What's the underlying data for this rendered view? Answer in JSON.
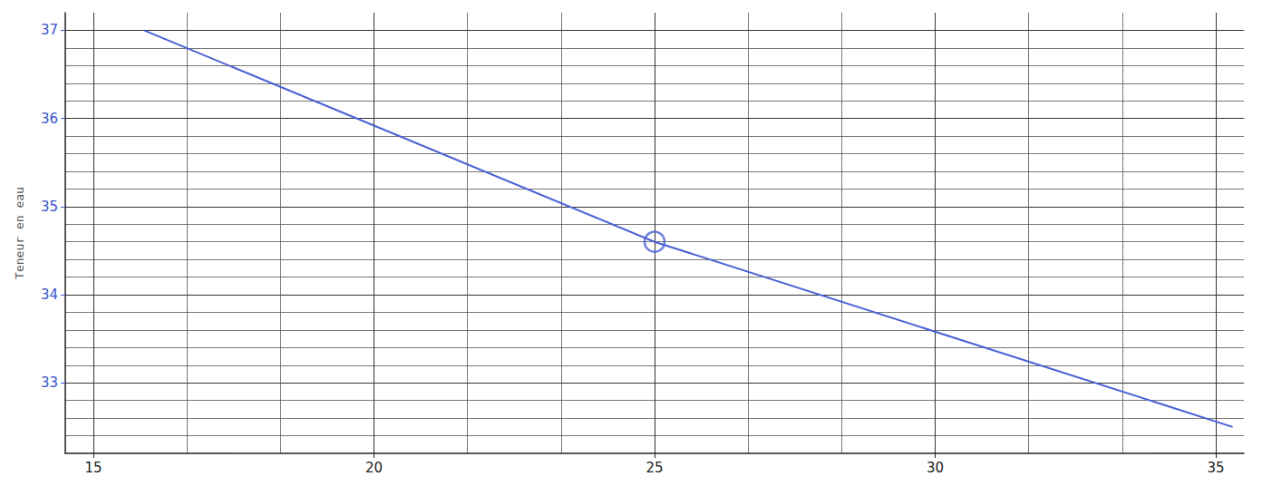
{
  "chart_data": {
    "type": "line",
    "y_label": "Teneur en eau",
    "xlim": [
      14.5,
      35.5
    ],
    "xticks": [
      15,
      20,
      25,
      30,
      35
    ],
    "ylim": [
      32.2,
      37.2
    ],
    "yticks": [
      33,
      34,
      35,
      36,
      37
    ],
    "grid": true,
    "series": [
      {
        "type": "line",
        "marker": "none",
        "color": "#4a60d4",
        "x": [
          15.9,
          25,
          35.3
        ],
        "values": [
          37,
          34.6,
          32.5
        ]
      },
      {
        "type": "scatter",
        "marker": "circle",
        "color": "#4a60d4",
        "x": [
          25
        ],
        "values": [
          34.6
        ]
      }
    ]
  }
}
